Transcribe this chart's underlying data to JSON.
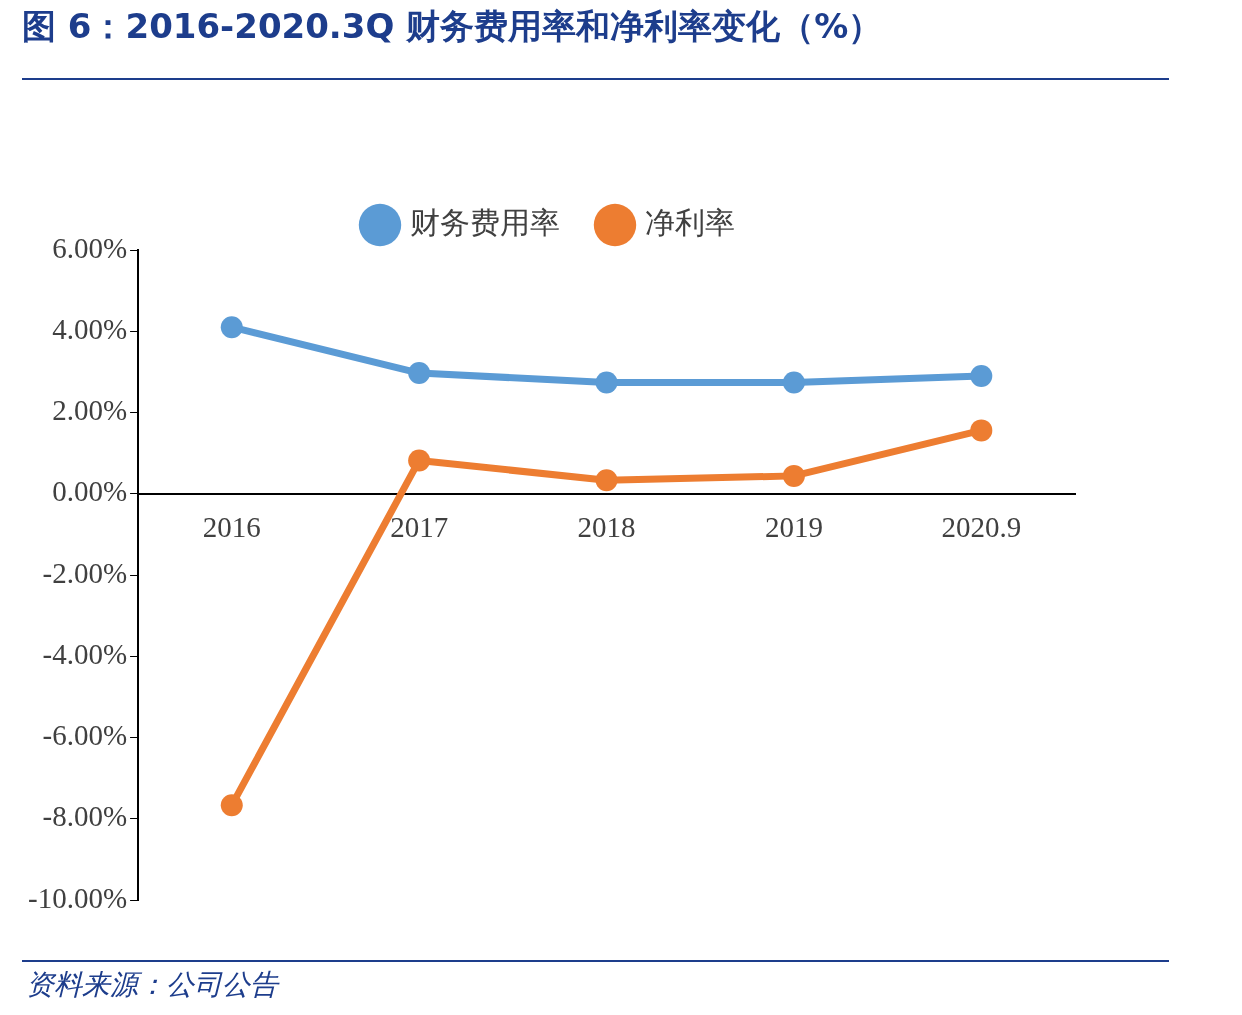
{
  "chart_data": {
    "type": "line",
    "title": "图 6：2016-2020.3Q 财务费用率和净利率变化（%）",
    "annotations": [
      "资料来源：公司公告"
    ],
    "categories": [
      "2016",
      "2017",
      "2018",
      "2019",
      "2020.9"
    ],
    "series": [
      {
        "name": "财务费用率",
        "color": "#5b9bd5",
        "values": [
          4.1,
          2.97,
          2.74,
          2.74,
          2.9
        ]
      },
      {
        "name": "净利率",
        "color": "#ed7d31",
        "values": [
          -7.67,
          0.82,
          0.33,
          0.44,
          1.56
        ]
      }
    ],
    "ylim": [
      -10,
      6
    ],
    "yticks": [
      {
        "value": -10,
        "label": "-10.00%"
      },
      {
        "value": -8,
        "label": "-8.00%"
      },
      {
        "value": -6,
        "label": "-6.00%"
      },
      {
        "value": -4,
        "label": "-4.00%"
      },
      {
        "value": -2,
        "label": "-2.00%"
      },
      {
        "value": 0,
        "label": "0.00%"
      },
      {
        "value": 2,
        "label": "2.00%"
      },
      {
        "value": 4,
        "label": "4.00%"
      },
      {
        "value": 6,
        "label": "6.00%"
      }
    ],
    "grid": false,
    "legend": "top",
    "marker": "circle",
    "line_style": "solid"
  }
}
